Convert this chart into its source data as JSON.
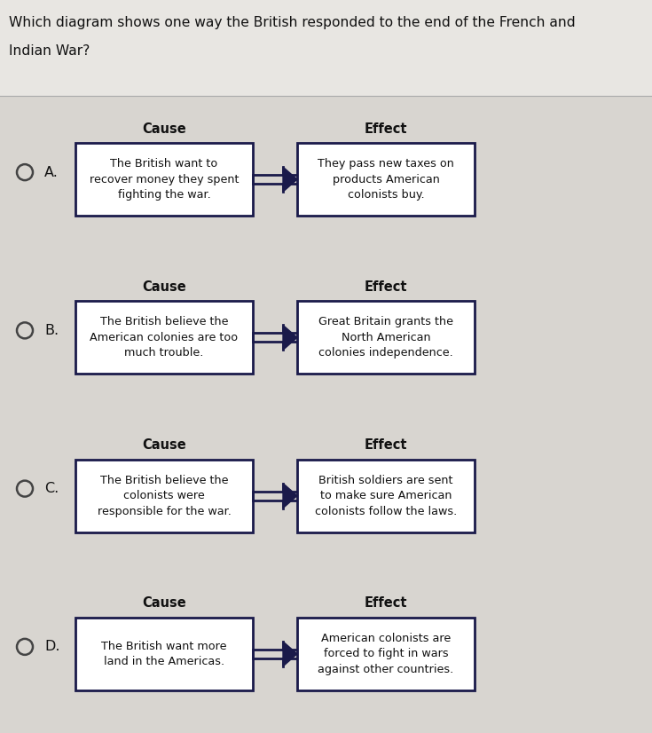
{
  "title_line1": "Which diagram shows one way the British responded to the end of the French and",
  "title_line2": "Indian War?",
  "bg_color": "#d8d5d0",
  "box_bg": "#ffffff",
  "box_edge": "#1a1a4a",
  "title_bg": "#e8e6e2",
  "separator_color": "#aaaaaa",
  "options": [
    {
      "label": "A.",
      "cause_header": "Cause",
      "effect_header": "Effect",
      "cause_text": "The British want to\nrecover money they spent\nfighting the war.",
      "effect_text": "They pass new taxes on\nproducts American\ncolonists buy."
    },
    {
      "label": "B.",
      "cause_header": "Cause",
      "effect_header": "Effect",
      "cause_text": "The British believe the\nAmerican colonies are too\nmuch trouble.",
      "effect_text": "Great Britain grants the\nNorth American\ncolonies independence."
    },
    {
      "label": "C.",
      "cause_header": "Cause",
      "effect_header": "Effect",
      "cause_text": "The British believe the\ncolonists were\nresponsible for the war.",
      "effect_text": "British soldiers are sent\nto make sure American\ncolonists follow the laws."
    },
    {
      "label": "D.",
      "cause_header": "Cause",
      "effect_header": "Effect",
      "cause_text": "The British want more\nland in the Americas.",
      "effect_text": "American colonists are\nforced to fight in wars\nagainst other countries."
    }
  ],
  "fig_width": 7.35,
  "fig_height": 8.26,
  "dpi": 100
}
